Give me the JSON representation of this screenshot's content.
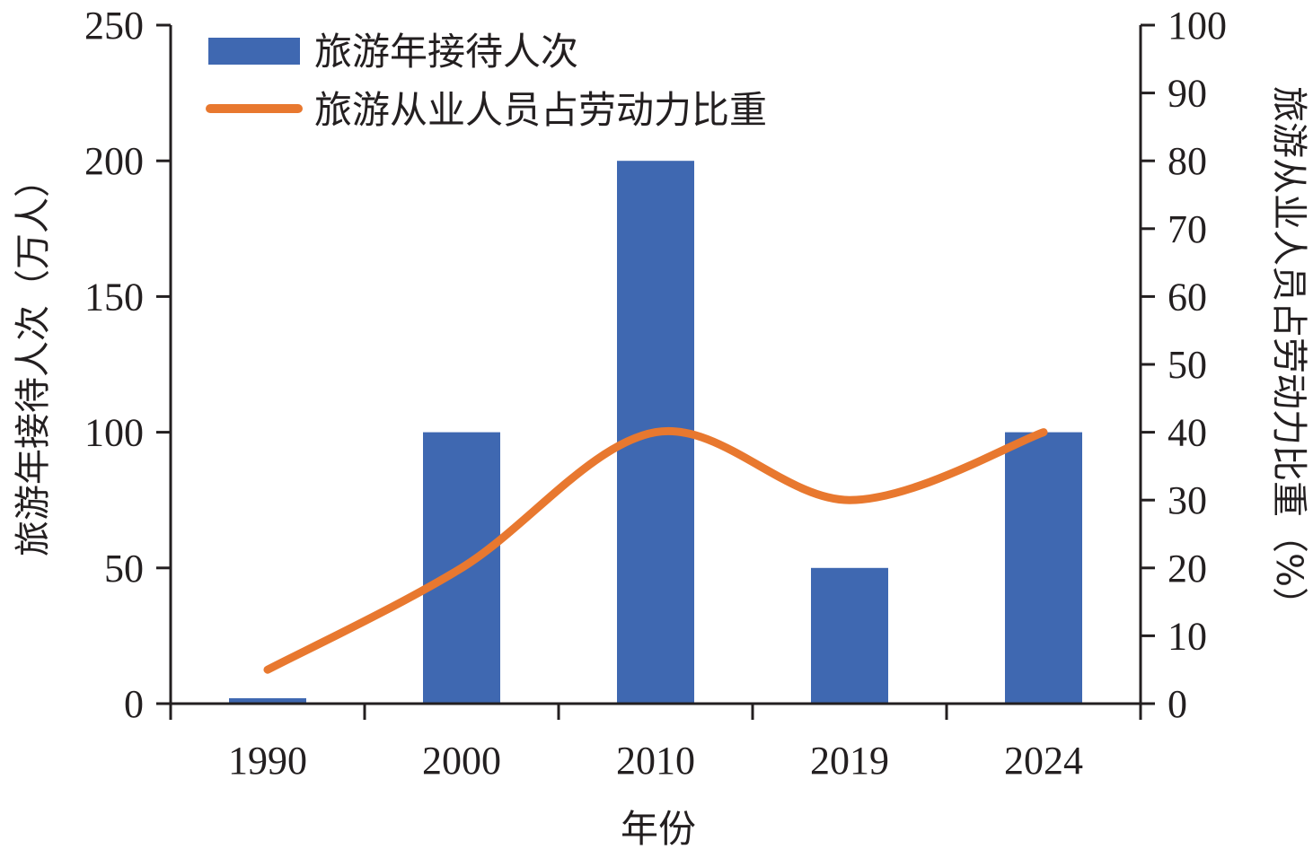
{
  "chart_data": {
    "type": "bar",
    "categories": [
      "1990",
      "2000",
      "2010",
      "2019",
      "2024"
    ],
    "xlabel": "年份",
    "series": [
      {
        "name": "旅游年接待人次",
        "kind": "bar",
        "axis": "left",
        "color": "#3f68b1",
        "values": [
          2,
          100,
          200,
          50,
          100
        ]
      },
      {
        "name": "旅游从业人员占劳动力比重",
        "kind": "line",
        "axis": "right",
        "color": "#e8782f",
        "smooth": true,
        "values": [
          5,
          20,
          40,
          30,
          40
        ]
      }
    ],
    "y_left": {
      "label": "旅游年接待人次（万人）",
      "range": [
        0,
        250
      ],
      "ticks": [
        "0",
        "50",
        "100",
        "150",
        "200",
        "250"
      ]
    },
    "y_right": {
      "label": "旅游从业人员占劳动力比重（%）",
      "range": [
        0,
        100
      ],
      "ticks": [
        "0",
        "10",
        "20",
        "30",
        "40",
        "50",
        "60",
        "70",
        "80",
        "90",
        "100"
      ]
    },
    "legend_position": "top-left",
    "grid": false
  }
}
